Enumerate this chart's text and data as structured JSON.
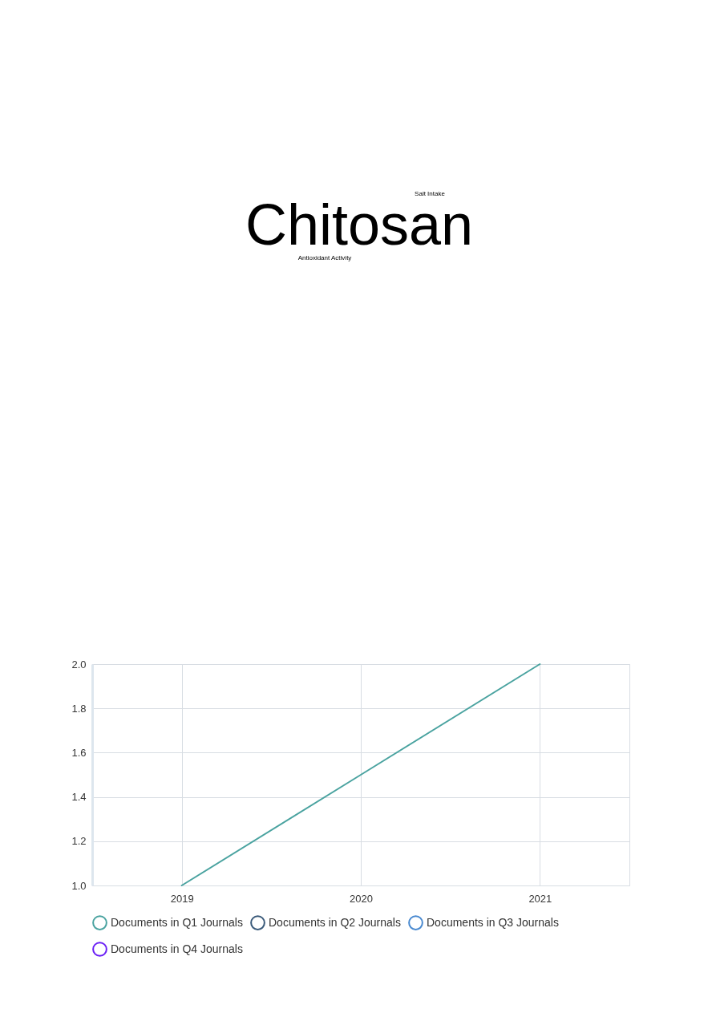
{
  "chart_data": [
    {
      "type": "other",
      "annotations": [
        "Salt Intake",
        "Chitosan",
        "Antioxidant Activity"
      ]
    },
    {
      "type": "line",
      "categories": [
        "2019",
        "2020",
        "2021"
      ],
      "series": [
        {
          "name": "Documents in Q1 Journals",
          "color": "#4aa3a0",
          "values": [
            1.0,
            1.5,
            2.0
          ]
        },
        {
          "name": "Documents in Q2 Journals",
          "color": "#3a5a7a",
          "values": [
            null,
            null,
            null
          ]
        },
        {
          "name": "Documents in Q3 Journals",
          "color": "#4a8ad0",
          "values": [
            null,
            null,
            null
          ]
        },
        {
          "name": "Documents in Q4 Journals",
          "color": "#6a1ff5",
          "values": [
            null,
            null,
            null
          ]
        }
      ],
      "ylim": [
        1.0,
        2.0
      ],
      "yticks": [
        {
          "value": 1,
          "label": "1.0"
        },
        1.2,
        1.4,
        1.6,
        1.8,
        {
          "value": 2,
          "label": "2.0"
        }
      ],
      "grid": true,
      "legend": "bottom"
    }
  ]
}
